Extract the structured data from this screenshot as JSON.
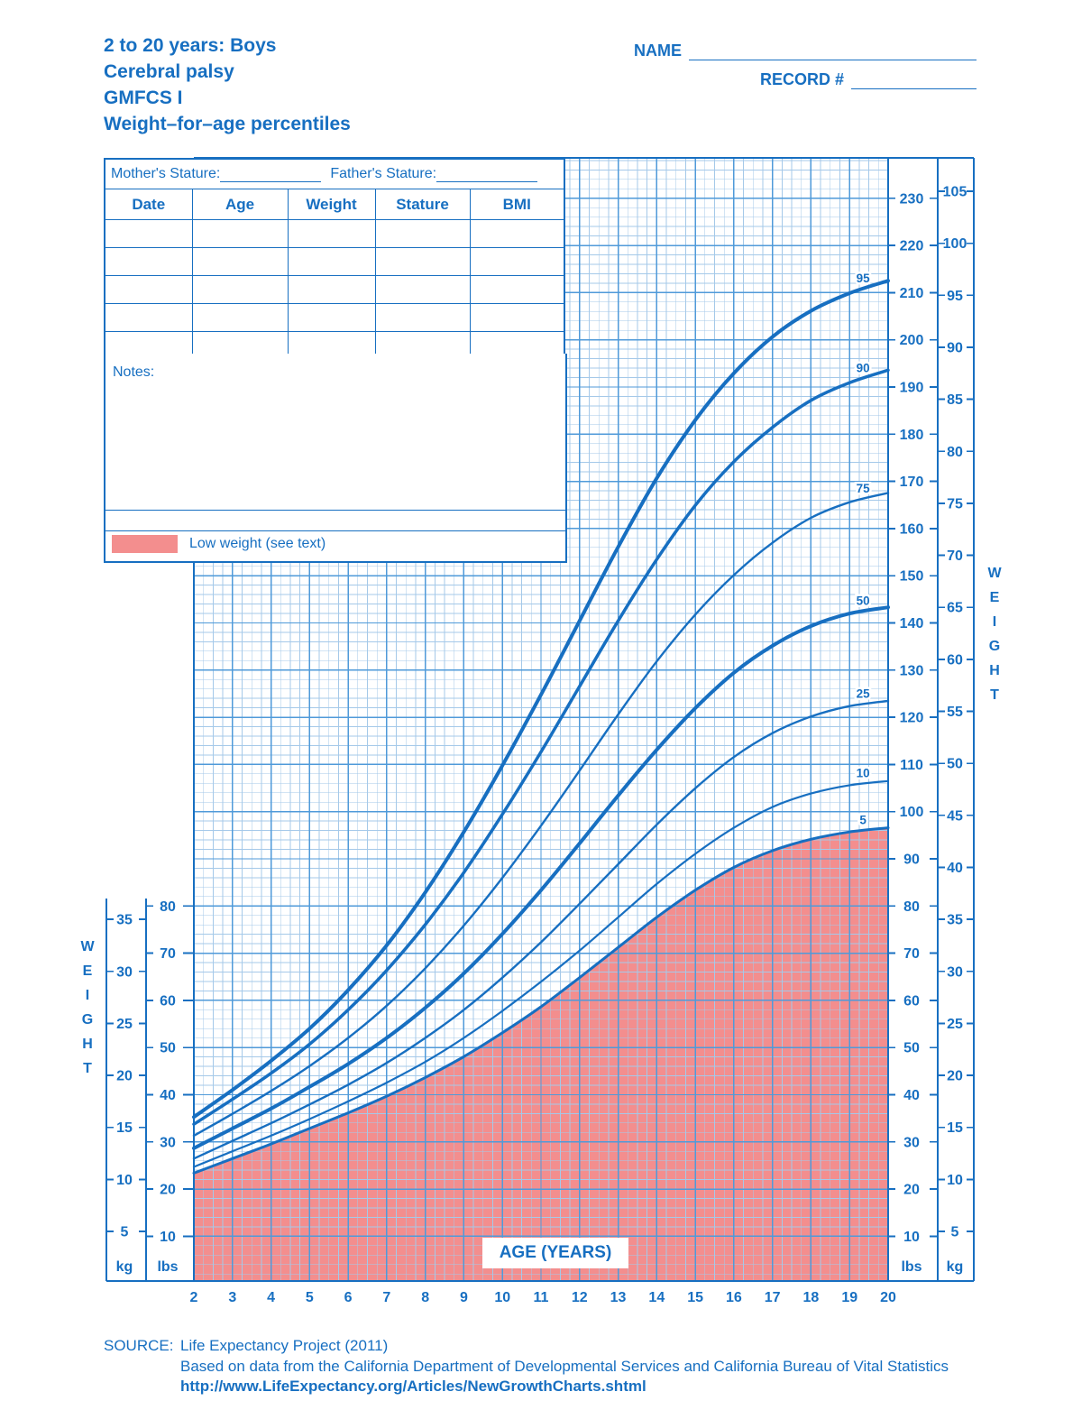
{
  "header": {
    "title_lines": [
      "2 to 20 years: Boys",
      "Cerebral palsy",
      "GMFCS I",
      "Weight–for–age percentiles"
    ],
    "name_label": "NAME",
    "record_label": "RECORD #"
  },
  "patient_table": {
    "mother_stature_label": "Mother's Stature:",
    "father_stature_label": "Father's Stature:",
    "columns": [
      "Date",
      "Age",
      "Weight",
      "Stature",
      "BMI"
    ],
    "empty_rows": 5,
    "notes_label": "Notes:",
    "legend": {
      "low_weight_label": "Low weight (see text)"
    }
  },
  "chart_data": {
    "type": "line",
    "title": "Weight-for-age percentiles, boys with cerebral palsy GMFCS I",
    "xlabel": "AGE (YEARS)",
    "ylabel": "WEIGHT",
    "xlim": [
      2,
      20
    ],
    "ylim_kg": [
      0,
      108
    ],
    "ylim_lbs": [
      0,
      238
    ],
    "grid": true,
    "x": [
      2,
      3,
      4,
      5,
      6,
      7,
      8,
      9,
      10,
      11,
      12,
      13,
      14,
      15,
      16,
      17,
      18,
      19,
      20
    ],
    "series": [
      {
        "name": "95",
        "lw": 4,
        "values": [
          16.0,
          18.6,
          21.4,
          24.5,
          28.2,
          32.5,
          37.6,
          43.4,
          49.8,
          56.6,
          63.7,
          70.8,
          77.4,
          83.0,
          87.5,
          91.0,
          93.5,
          95.2,
          96.4
        ]
      },
      {
        "name": "90",
        "lw": 3.5,
        "values": [
          15.3,
          17.7,
          20.2,
          23.0,
          26.3,
          30.1,
          34.5,
          39.5,
          45.1,
          51.1,
          57.4,
          63.7,
          69.6,
          74.8,
          79.0,
          82.3,
          84.9,
          86.6,
          87.8
        ]
      },
      {
        "name": "75",
        "lw": 2.4,
        "values": [
          14.2,
          16.3,
          18.5,
          20.9,
          23.6,
          26.7,
          30.3,
          34.4,
          39.0,
          44.0,
          49.3,
          54.7,
          59.8,
          64.3,
          68.1,
          71.2,
          73.6,
          75.1,
          76.0
        ]
      },
      {
        "name": "50",
        "lw": 4,
        "values": [
          13.0,
          14.9,
          16.8,
          18.9,
          21.1,
          23.6,
          26.5,
          29.8,
          33.6,
          37.8,
          42.3,
          46.9,
          51.3,
          55.3,
          58.7,
          61.3,
          63.2,
          64.4,
          65.0
        ]
      },
      {
        "name": "25",
        "lw": 2.4,
        "values": [
          12.0,
          13.7,
          15.4,
          17.2,
          19.1,
          21.2,
          23.6,
          26.3,
          29.4,
          32.8,
          36.5,
          40.3,
          44.1,
          47.6,
          50.6,
          52.9,
          54.5,
          55.5,
          56.0
        ]
      },
      {
        "name": "10",
        "lw": 2.2,
        "values": [
          11.2,
          12.7,
          14.2,
          15.8,
          17.5,
          19.3,
          21.3,
          23.6,
          26.2,
          29.0,
          32.0,
          35.2,
          38.4,
          41.3,
          43.8,
          45.8,
          47.1,
          47.9,
          48.3
        ]
      },
      {
        "name": "5",
        "lw": 3,
        "values": [
          10.6,
          12.0,
          13.4,
          14.9,
          16.4,
          18.0,
          19.8,
          21.8,
          24.1,
          26.6,
          29.4,
          32.3,
          35.2,
          37.8,
          40.0,
          41.6,
          42.7,
          43.4,
          43.8
        ]
      }
    ],
    "low_weight_region": {
      "label": "Low weight (see text)",
      "boundary_percentile": "5",
      "fill_below_curve": true
    },
    "units": {
      "left_outer": "kg",
      "left_inner": "lbs",
      "right_inner": "lbs",
      "right_outer": "kg"
    },
    "axes": {
      "x_ticks": [
        2,
        3,
        4,
        5,
        6,
        7,
        8,
        9,
        10,
        11,
        12,
        13,
        14,
        15,
        16,
        17,
        18,
        19,
        20
      ],
      "minor_x_step": 0.25,
      "minor_lbs_step": 2,
      "left_kg_ticks": [
        5,
        10,
        15,
        20,
        25,
        30,
        35
      ],
      "left_lbs_ticks": [
        10,
        20,
        30,
        40,
        50,
        60,
        70,
        80
      ],
      "right_lbs_ticks": [
        10,
        20,
        30,
        40,
        50,
        60,
        70,
        80,
        90,
        100,
        110,
        120,
        130,
        140,
        150,
        160,
        170,
        180,
        190,
        200,
        210,
        220,
        230
      ],
      "right_kg_ticks": [
        5,
        10,
        15,
        20,
        25,
        30,
        35,
        40,
        45,
        50,
        55,
        60,
        65,
        70,
        75,
        80,
        85,
        90,
        95,
        100,
        105
      ]
    },
    "colors": {
      "accent": "#176fc1",
      "grid_major": "#4f9ad9",
      "grid_minor": "#a5c9e9",
      "low_weight_fill": "#f38e8e",
      "background": "#ffffff"
    }
  },
  "footer": {
    "source_label": "SOURCE:",
    "source_line1": "Life Expectancy Project (2011)",
    "source_line2": "Based on data from the California Department of Developmental Services and California Bureau of Vital Statistics",
    "source_url": "http://www.LifeExpectancy.org/Articles/NewGrowthCharts.shtml"
  }
}
